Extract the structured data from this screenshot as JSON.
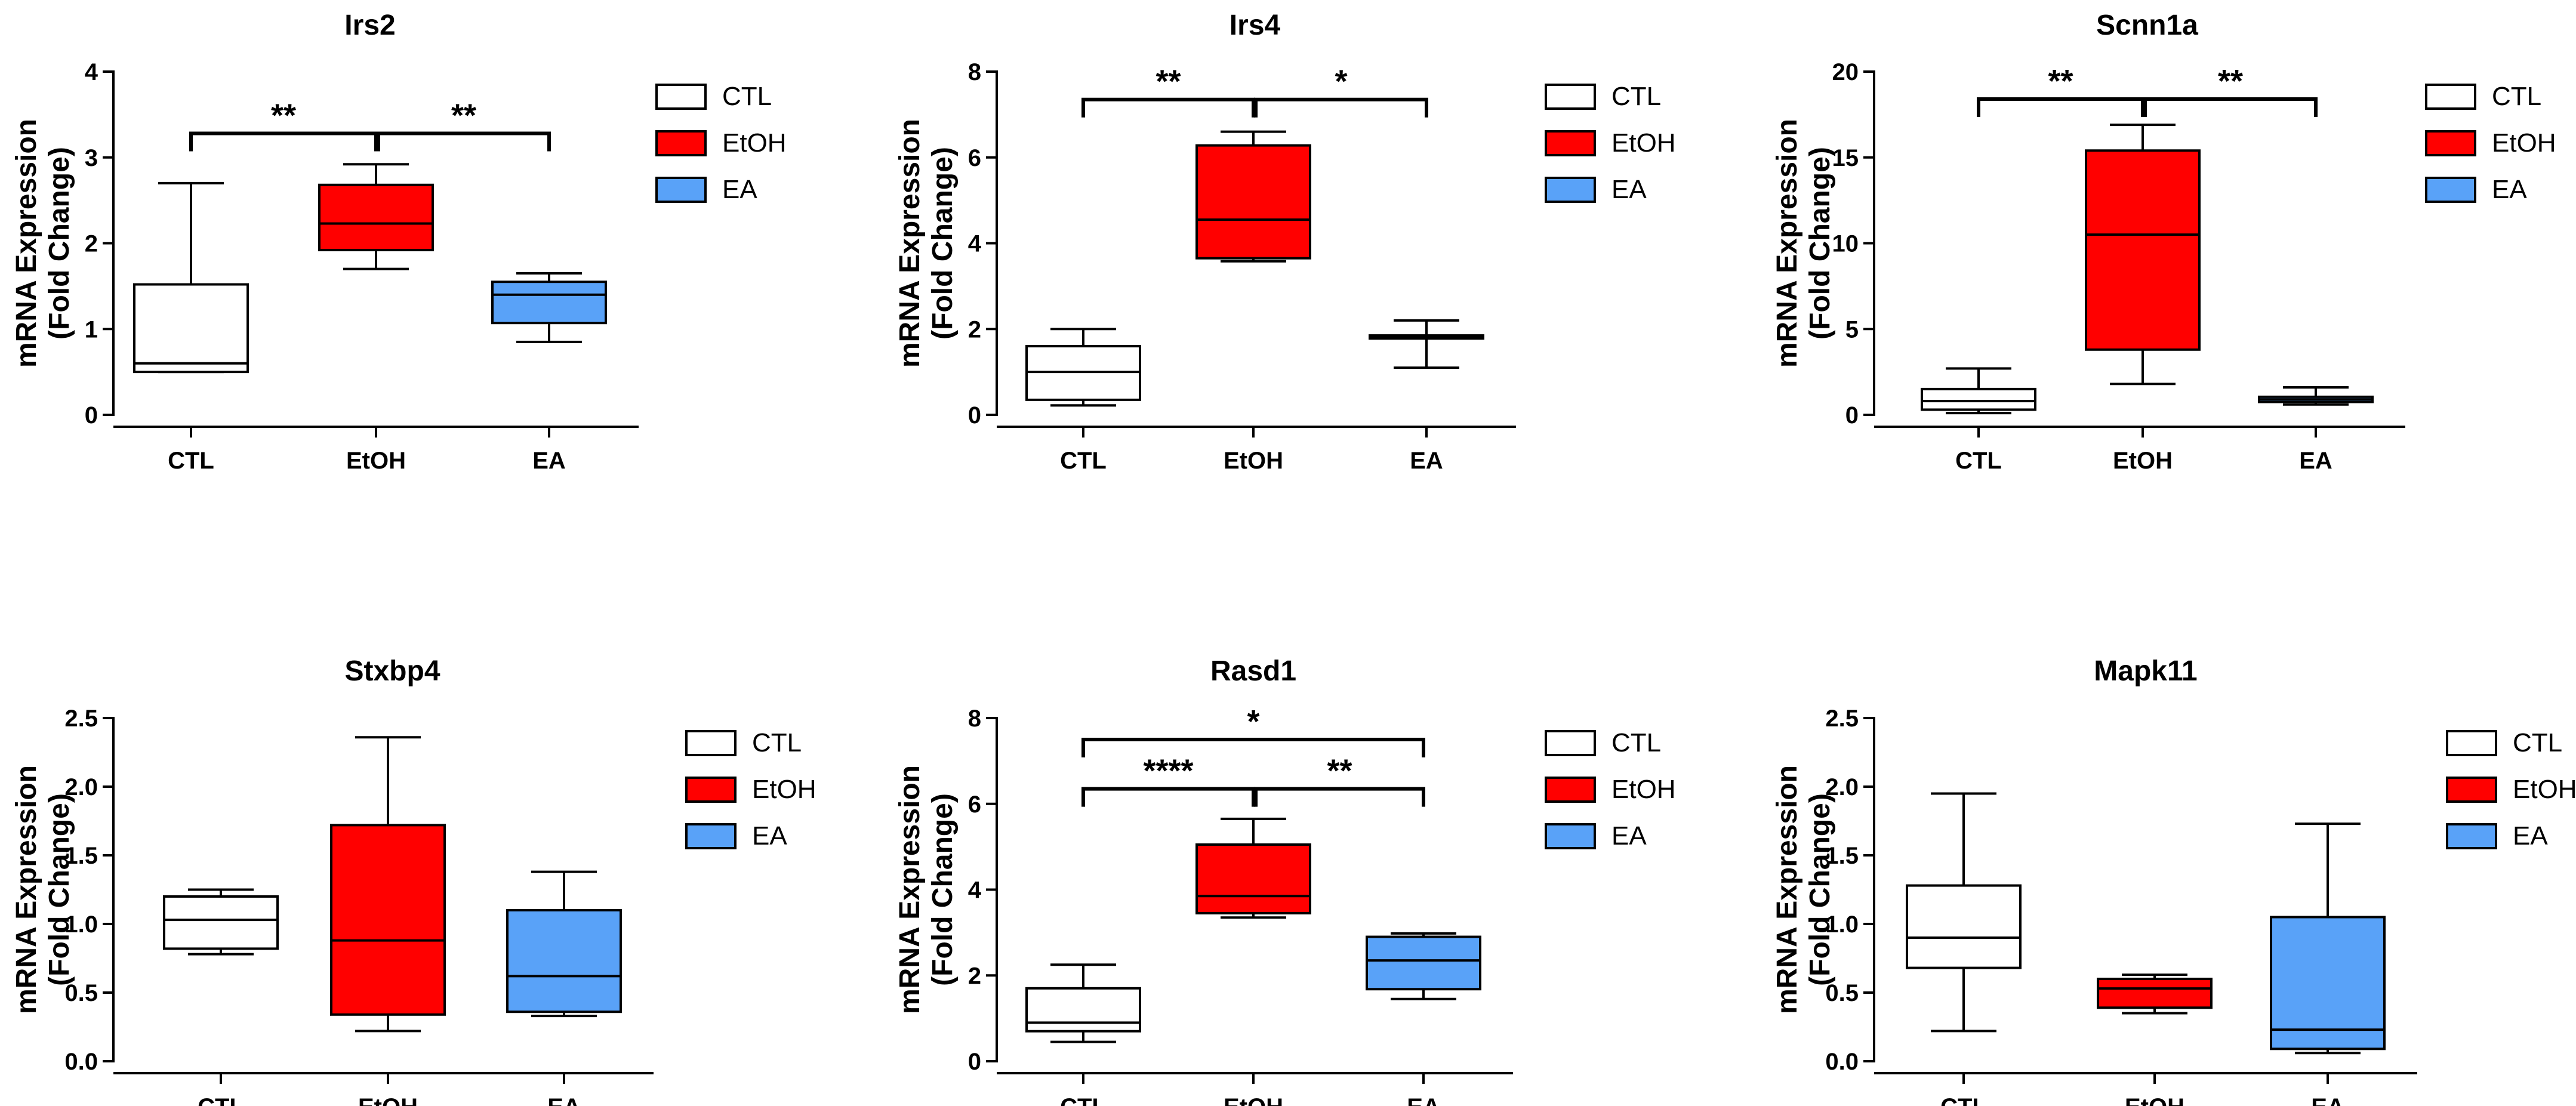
{
  "colors": {
    "CTL": "#ffffff",
    "EtOH": "#ff0000",
    "EA": "#59a2f8"
  },
  "chart_data": [
    {
      "type": "box",
      "title": "Irs2",
      "ylabel": [
        "mRNA Expression",
        "(Fold Change)"
      ],
      "ylim": [
        0,
        4
      ],
      "yticks": [
        "0",
        "1",
        "2",
        "3",
        "4"
      ],
      "ytick_values": [
        0,
        1,
        2,
        3,
        4
      ],
      "categories": [
        "CTL",
        "EtOH",
        "EA"
      ],
      "legend": [
        "CTL",
        "EtOH",
        "EA"
      ],
      "boxes": [
        {
          "group": "CTL",
          "min": 0.5,
          "q1": 0.5,
          "median": 0.6,
          "q3": 1.52,
          "max": 2.7
        },
        {
          "group": "EtOH",
          "min": 1.7,
          "q1": 1.92,
          "median": 2.23,
          "q3": 2.68,
          "max": 2.92
        },
        {
          "group": "EA",
          "min": 0.85,
          "q1": 1.07,
          "median": 1.4,
          "q3": 1.55,
          "max": 1.65
        }
      ],
      "significance": [
        {
          "from": "CTL",
          "to": "EtOH",
          "label": "**",
          "y": 3.28
        },
        {
          "from": "EtOH",
          "to": "EA",
          "label": "**",
          "y": 3.28
        }
      ]
    },
    {
      "type": "box",
      "title": "Irs4",
      "ylabel": [
        "mRNA Expression",
        "(Fold Change)"
      ],
      "ylim": [
        0,
        8
      ],
      "yticks": [
        "0",
        "2",
        "4",
        "6",
        "8"
      ],
      "ytick_values": [
        0,
        2,
        4,
        6,
        8
      ],
      "categories": [
        "CTL",
        "EtOH",
        "EA"
      ],
      "legend": [
        "CTL",
        "EtOH",
        "EA"
      ],
      "boxes": [
        {
          "group": "CTL",
          "min": 0.22,
          "q1": 0.35,
          "median": 1.0,
          "q3": 1.6,
          "max": 2.0
        },
        {
          "group": "EtOH",
          "min": 3.58,
          "q1": 3.65,
          "median": 4.55,
          "q3": 6.28,
          "max": 6.6
        },
        {
          "group": "EA",
          "min": 1.1,
          "q1": 1.78,
          "median": 1.8,
          "q3": 1.85,
          "max": 2.2
        }
      ],
      "significance": [
        {
          "from": "CTL",
          "to": "EtOH",
          "label": "**",
          "y": 7.35
        },
        {
          "from": "EtOH",
          "to": "EA",
          "label": "*",
          "y": 7.35
        }
      ]
    },
    {
      "type": "box",
      "title": "Scnn1a",
      "ylabel": [
        "mRNA Expression",
        "(Fold Change)"
      ],
      "ylim": [
        0,
        20
      ],
      "yticks": [
        "0",
        "5",
        "10",
        "15",
        "20"
      ],
      "ytick_values": [
        0,
        5,
        10,
        15,
        20
      ],
      "categories": [
        "CTL",
        "EtOH",
        "EA"
      ],
      "legend": [
        "CTL",
        "EtOH",
        "EA"
      ],
      "boxes": [
        {
          "group": "CTL",
          "min": 0.1,
          "q1": 0.3,
          "median": 0.8,
          "q3": 1.5,
          "max": 2.7
        },
        {
          "group": "EtOH",
          "min": 1.8,
          "q1": 3.8,
          "median": 10.5,
          "q3": 15.4,
          "max": 16.9
        },
        {
          "group": "EA",
          "min": 0.6,
          "q1": 0.75,
          "median": 0.9,
          "q3": 1.05,
          "max": 1.6
        }
      ],
      "significance": [
        {
          "from": "CTL",
          "to": "EtOH",
          "label": "**",
          "y": 18.4
        },
        {
          "from": "EtOH",
          "to": "EA",
          "label": "**",
          "y": 18.4
        }
      ]
    },
    {
      "type": "box",
      "title": "Stxbp4",
      "ylabel": [
        "mRNA Expression",
        "(Fold Change)"
      ],
      "ylim": [
        0,
        2.5
      ],
      "yticks": [
        "0.0",
        "0.5",
        "1.0",
        "1.5",
        "2.0",
        "2.5"
      ],
      "ytick_values": [
        0,
        0.5,
        1,
        1.5,
        2,
        2.5
      ],
      "categories": [
        "CTL",
        "EtOH",
        "EA"
      ],
      "legend": [
        "CTL",
        "EtOH",
        "EA"
      ],
      "boxes": [
        {
          "group": "CTL",
          "min": 0.78,
          "q1": 0.82,
          "median": 1.03,
          "q3": 1.2,
          "max": 1.25
        },
        {
          "group": "EtOH",
          "min": 0.22,
          "q1": 0.34,
          "median": 0.88,
          "q3": 1.72,
          "max": 2.36
        },
        {
          "group": "EA",
          "min": 0.33,
          "q1": 0.36,
          "median": 0.62,
          "q3": 1.1,
          "max": 1.38
        }
      ],
      "significance": []
    },
    {
      "type": "box",
      "title": "Rasd1",
      "ylabel": [
        "mRNA Expression",
        "(Fold Change)"
      ],
      "ylim": [
        0,
        8
      ],
      "yticks": [
        "0",
        "2",
        "4",
        "6",
        "8"
      ],
      "ytick_values": [
        0,
        2,
        4,
        6,
        8
      ],
      "categories": [
        "CTL",
        "EtOH",
        "EA"
      ],
      "legend": [
        "CTL",
        "EtOH",
        "EA"
      ],
      "boxes": [
        {
          "group": "CTL",
          "min": 0.45,
          "q1": 0.7,
          "median": 0.9,
          "q3": 1.7,
          "max": 2.25
        },
        {
          "group": "EtOH",
          "min": 3.35,
          "q1": 3.45,
          "median": 3.85,
          "q3": 5.05,
          "max": 5.65
        },
        {
          "group": "EA",
          "min": 1.45,
          "q1": 1.68,
          "median": 2.35,
          "q3": 2.9,
          "max": 2.98
        }
      ],
      "significance": [
        {
          "from": "CTL",
          "to": "EtOH",
          "label": "****",
          "y": 6.35
        },
        {
          "from": "EtOH",
          "to": "EA",
          "label": "**",
          "y": 6.35
        },
        {
          "from": "CTL",
          "to": "EA",
          "label": "*",
          "y": 7.5
        }
      ]
    },
    {
      "type": "box",
      "title": "Mapk11",
      "ylabel": [
        "mRNA Expression",
        "(Fold Change)"
      ],
      "ylim": [
        0,
        2.5
      ],
      "yticks": [
        "0.0",
        "0.5",
        "1.0",
        "1.5",
        "2.0",
        "2.5"
      ],
      "ytick_values": [
        0,
        0.5,
        1,
        1.5,
        2,
        2.5
      ],
      "categories": [
        "CTL",
        "EtOH",
        "EA"
      ],
      "legend": [
        "CTL",
        "EtOH",
        "EA"
      ],
      "boxes": [
        {
          "group": "CTL",
          "min": 0.22,
          "q1": 0.68,
          "median": 0.9,
          "q3": 1.28,
          "max": 1.95
        },
        {
          "group": "EtOH",
          "min": 0.35,
          "q1": 0.39,
          "median": 0.53,
          "q3": 0.6,
          "max": 0.63
        },
        {
          "group": "EA",
          "min": 0.06,
          "q1": 0.09,
          "median": 0.23,
          "q3": 1.05,
          "max": 1.73
        }
      ],
      "significance": []
    }
  ]
}
